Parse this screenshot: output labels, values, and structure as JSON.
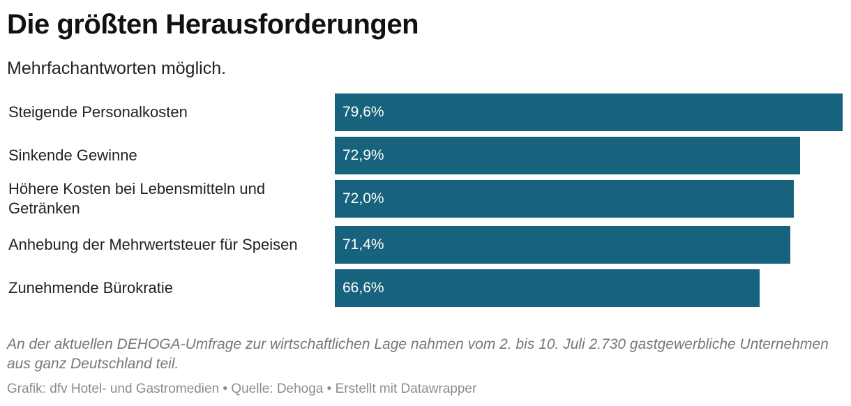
{
  "header": {
    "title": "Die größten Herausforderungen",
    "subtitle": "Mehrfachantworten möglich."
  },
  "chart_data": {
    "type": "bar",
    "orientation": "horizontal",
    "categories": [
      "Steigende Personalkosten",
      "Sinkende Gewinne",
      "Höhere Kosten bei Lebensmitteln und Getränken",
      "Anhebung der Mehrwertsteuer für Speisen",
      "Zunehmende Bürokratie"
    ],
    "values": [
      79.6,
      72.9,
      72.0,
      71.4,
      66.6
    ],
    "value_labels": [
      "79,6%",
      "72,9%",
      "72,0%",
      "71,4%",
      "66,6%"
    ],
    "title": "Die größten Herausforderungen",
    "subtitle": "Mehrfachantworten möglich.",
    "xlim": [
      0,
      79.6
    ],
    "grid": false,
    "bar_color": "#17627c",
    "value_label_color": "#ffffff"
  },
  "notes": {
    "text": "An der aktuellen DEHOGA-Umfrage zur wirtschaftlichen Lage nahmen vom 2. bis 10. Juli 2.730 gastgewerbliche Unternehmen aus ganz Deutschland teil."
  },
  "footer": {
    "text": "Grafik: dfv Hotel- und Gastromedien • Quelle: Dehoga • Erstellt mit Datawrapper"
  }
}
